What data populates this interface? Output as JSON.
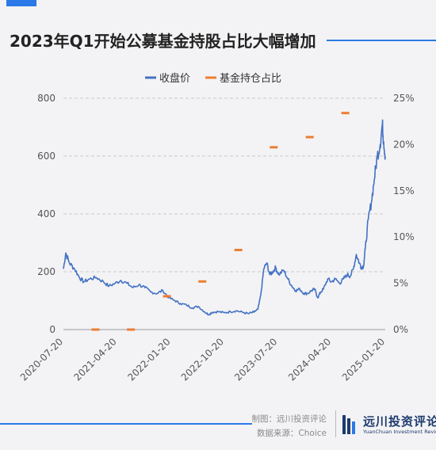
{
  "header": {
    "title": "2023年Q1开始公募基金持股占比大幅增加"
  },
  "footer": {
    "credit_line1": "制图：远川投资评论",
    "credit_line2": "数据来源：Choice",
    "brand_cn": "远川投资评论",
    "brand_en": "YuanChuan Investment Review"
  },
  "colors": {
    "accent": "#2a79e6",
    "price_line": "#4472c4",
    "holding_marker": "#ed7d31",
    "brand": "#1e3a6e"
  },
  "chart_data": {
    "type": "line",
    "title": "2023年Q1开始公募基金持股占比大幅增加",
    "legend": [
      "收盘价",
      "基金持仓占比"
    ],
    "legend_position": "top",
    "grid": true,
    "x_ticks": [
      "2020-07-20",
      "2021-04-20",
      "2022-01-20",
      "2022-10-20",
      "2023-07-20",
      "2024-04-20",
      "2025-01-20"
    ],
    "x_range": [
      "2020-07-20",
      "2025-01-20"
    ],
    "y_left": {
      "ticks": [
        0,
        200,
        400,
        600,
        800
      ],
      "range": [
        0,
        800
      ]
    },
    "y_right": {
      "ticks": [
        "0%",
        "5%",
        "10%",
        "15%",
        "20%",
        "25%"
      ],
      "range": [
        0,
        25
      ]
    },
    "series": [
      {
        "name": "收盘价",
        "axis": "left",
        "points": [
          [
            "2020-07-20",
            210
          ],
          [
            "2020-08-01",
            265
          ],
          [
            "2020-08-20",
            230
          ],
          [
            "2020-09-15",
            210
          ],
          [
            "2020-10-10",
            180
          ],
          [
            "2020-11-01",
            165
          ],
          [
            "2020-12-01",
            175
          ],
          [
            "2021-01-05",
            180
          ],
          [
            "2021-02-10",
            165
          ],
          [
            "2021-03-10",
            150
          ],
          [
            "2021-04-10",
            160
          ],
          [
            "2021-05-10",
            170
          ],
          [
            "2021-06-10",
            160
          ],
          [
            "2021-07-10",
            145
          ],
          [
            "2021-08-10",
            155
          ],
          [
            "2021-09-10",
            145
          ],
          [
            "2021-10-10",
            130
          ],
          [
            "2021-11-10",
            125
          ],
          [
            "2021-12-10",
            135
          ],
          [
            "2022-01-10",
            110
          ],
          [
            "2022-02-10",
            100
          ],
          [
            "2022-03-10",
            90
          ],
          [
            "2022-04-10",
            85
          ],
          [
            "2022-05-10",
            75
          ],
          [
            "2022-06-10",
            80
          ],
          [
            "2022-07-10",
            62
          ],
          [
            "2022-08-01",
            52
          ],
          [
            "2022-08-20",
            60
          ],
          [
            "2022-09-20",
            62
          ],
          [
            "2022-10-20",
            58
          ],
          [
            "2022-11-20",
            62
          ],
          [
            "2022-12-20",
            65
          ],
          [
            "2023-01-20",
            60
          ],
          [
            "2023-02-20",
            55
          ],
          [
            "2023-03-20",
            60
          ],
          [
            "2023-04-10",
            70
          ],
          [
            "2023-04-25",
            120
          ],
          [
            "2023-05-10",
            210
          ],
          [
            "2023-05-25",
            230
          ],
          [
            "2023-06-10",
            190
          ],
          [
            "2023-06-25",
            200
          ],
          [
            "2023-07-10",
            215
          ],
          [
            "2023-07-25",
            190
          ],
          [
            "2023-08-20",
            205
          ],
          [
            "2023-09-10",
            175
          ],
          [
            "2023-10-01",
            150
          ],
          [
            "2023-10-20",
            135
          ],
          [
            "2023-11-10",
            140
          ],
          [
            "2023-12-01",
            125
          ],
          [
            "2023-12-20",
            125
          ],
          [
            "2024-01-10",
            135
          ],
          [
            "2024-01-25",
            140
          ],
          [
            "2024-02-10",
            110
          ],
          [
            "2024-02-25",
            130
          ],
          [
            "2024-03-10",
            140
          ],
          [
            "2024-04-01",
            175
          ],
          [
            "2024-04-20",
            165
          ],
          [
            "2024-05-10",
            175
          ],
          [
            "2024-06-01",
            160
          ],
          [
            "2024-06-20",
            175
          ],
          [
            "2024-07-10",
            190
          ],
          [
            "2024-07-25",
            185
          ],
          [
            "2024-08-10",
            210
          ],
          [
            "2024-08-25",
            260
          ],
          [
            "2024-09-10",
            230
          ],
          [
            "2024-09-20",
            215
          ],
          [
            "2024-10-01",
            220
          ],
          [
            "2024-10-10",
            280
          ],
          [
            "2024-10-25",
            380
          ],
          [
            "2024-11-10",
            440
          ],
          [
            "2024-11-25",
            520
          ],
          [
            "2024-12-10",
            600
          ],
          [
            "2024-12-25",
            640
          ],
          [
            "2025-01-05",
            710
          ],
          [
            "2025-01-12",
            650
          ],
          [
            "2025-01-20",
            600
          ]
        ]
      },
      {
        "name": "基金持仓占比",
        "axis": "right",
        "style": "marker",
        "points": [
          [
            "2020-12-31",
            0
          ],
          [
            "2021-06-30",
            0
          ],
          [
            "2021-12-31",
            3.6
          ],
          [
            "2022-06-30",
            5.2
          ],
          [
            "2022-12-31",
            8.6
          ],
          [
            "2023-06-30",
            19.7
          ],
          [
            "2023-12-31",
            20.8
          ],
          [
            "2024-06-30",
            23.4
          ]
        ]
      }
    ]
  }
}
